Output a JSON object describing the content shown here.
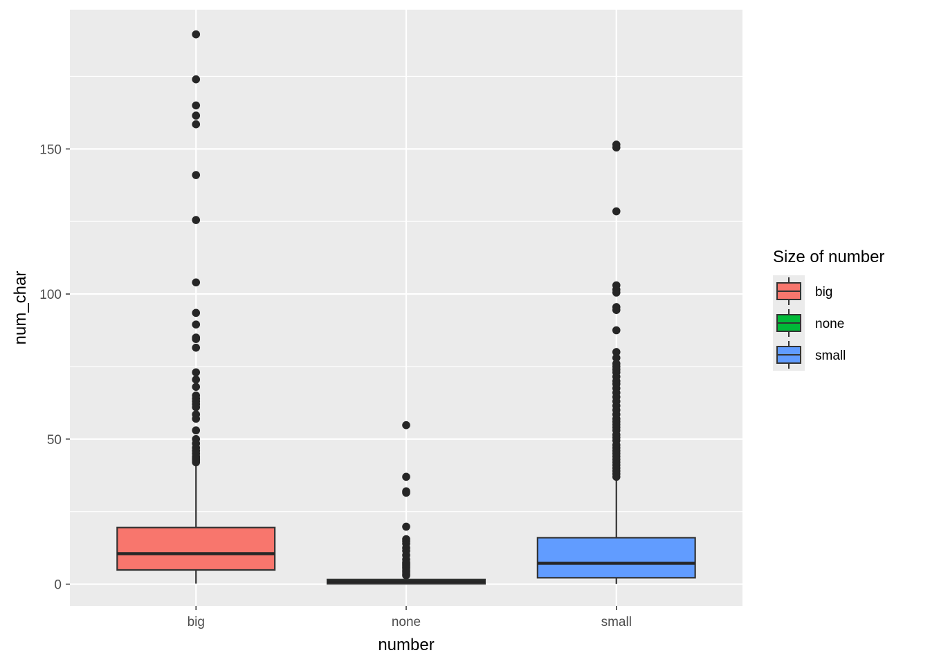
{
  "chart_data": {
    "type": "boxplot",
    "xlabel": "number",
    "ylabel": "num_char",
    "ylim": [
      -7.5,
      198
    ],
    "yticks": [
      0,
      50,
      100,
      150
    ],
    "grid": true,
    "categories": [
      "big",
      "none",
      "small"
    ],
    "legend": {
      "title": "Size of number",
      "placement": "right",
      "entries": [
        {
          "label": "big",
          "color": "#F8766D"
        },
        {
          "label": "none",
          "color": "#00BA38"
        },
        {
          "label": "small",
          "color": "#619CFF"
        }
      ]
    },
    "boxes": [
      {
        "category": "big",
        "color": "#F8766D",
        "min": 0.2,
        "q1": 4.9,
        "median": 10.5,
        "q3": 19.5,
        "whisker_high": 41.5,
        "outliers": [
          189.5,
          174,
          165,
          161.5,
          158.5,
          141,
          125.5,
          104,
          93.5,
          89.5,
          85,
          84.5,
          81.5,
          73,
          70.5,
          68,
          65,
          64,
          63,
          62,
          61,
          58.5,
          57,
          53,
          50,
          48.5,
          47,
          46,
          45,
          44,
          43.5,
          43,
          42.5,
          42
        ]
      },
      {
        "category": "none",
        "color": "#00BA38",
        "min": 0,
        "q1": 0.1,
        "median": 0.8,
        "q3": 1.6,
        "whisker_high": 2.0,
        "outliers": [
          54.8,
          37,
          32,
          31.5,
          19.8,
          15.5,
          14.8,
          14,
          12.5,
          11.5,
          10,
          8.5,
          7.5,
          7,
          6.5,
          6,
          5.5,
          4.8,
          4.2,
          3.5,
          3
        ]
      },
      {
        "category": "small",
        "color": "#619CFF",
        "min": 0.1,
        "q1": 2.2,
        "median": 7.2,
        "q3": 16.0,
        "whisker_high": 36.5,
        "outliers": [
          151.5,
          150.5,
          128.5,
          103,
          101.5,
          100.5,
          95.5,
          94.5,
          87.5,
          80,
          78,
          76,
          75,
          74,
          73,
          71.5,
          70,
          69,
          67.5,
          66,
          64.5,
          63,
          61.5,
          60,
          58.5,
          57,
          56,
          55,
          54,
          53,
          51.5,
          50.5,
          49.5,
          48,
          47,
          46,
          45,
          44,
          43,
          42,
          41,
          40,
          39,
          38,
          37
        ]
      }
    ]
  }
}
